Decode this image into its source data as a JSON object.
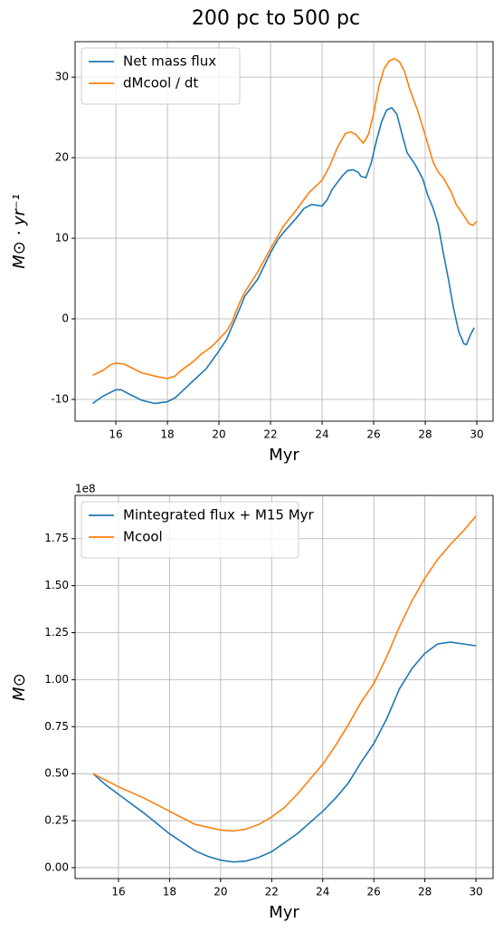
{
  "title": "200 pc to 500 pc",
  "chart_data": [
    {
      "type": "line",
      "xlabel": "Myr",
      "ylabel": "M⊙ · yr⁻¹",
      "legend": "upper left",
      "grid": true,
      "xlim": [
        14.42,
        30.63
      ],
      "xticks": [
        16,
        18,
        20,
        22,
        24,
        26,
        28,
        30
      ],
      "ylim": [
        -12.7,
        34.4
      ],
      "yticks": [
        -10,
        0,
        10,
        20,
        30
      ],
      "series": [
        {
          "name": "Net mass flux",
          "color": "#1f77b4",
          "x": [
            15.1,
            15.5,
            16,
            16.2,
            16.5,
            17,
            17.5,
            18,
            18.3,
            18.5,
            19,
            19.5,
            20,
            20.3,
            20.5,
            20.8,
            21,
            21.5,
            22,
            22.3,
            22.5,
            23,
            23.3,
            23.6,
            24,
            24.2,
            24.4,
            24.8,
            25,
            25.2,
            25.4,
            25.5,
            25.7,
            25.9,
            26.1,
            26.3,
            26.5,
            26.7,
            26.9,
            27.1,
            27.3,
            27.6,
            27.9,
            28.1,
            28.3,
            28.5,
            28.7,
            28.9,
            29.1,
            29.3,
            29.5,
            29.6,
            29.75,
            29.9
          ],
          "values": [
            -10.5,
            -9.6,
            -8.8,
            -8.8,
            -9.3,
            -10.1,
            -10.5,
            -10.3,
            -9.8,
            -9.2,
            -7.7,
            -6.2,
            -4.0,
            -2.5,
            -1.0,
            1.2,
            2.8,
            4.9,
            8.2,
            9.9,
            10.7,
            12.5,
            13.7,
            14.2,
            14.0,
            14.8,
            16.1,
            17.8,
            18.4,
            18.5,
            18.2,
            17.7,
            17.5,
            19.3,
            22,
            24.4,
            25.9,
            26.2,
            25.4,
            22.9,
            20.6,
            19.2,
            17.4,
            15.3,
            13.8,
            11.7,
            8.2,
            4.9,
            1.3,
            -1.6,
            -3.1,
            -3.2,
            -2.0,
            -1.1
          ]
        },
        {
          "name": "dMcool / dt",
          "color": "#ff7f0e",
          "x": [
            15.1,
            15.5,
            15.8,
            16,
            16.3,
            16.5,
            17,
            17.5,
            18,
            18.3,
            18.5,
            19,
            19.3,
            19.7,
            20,
            20.3,
            20.5,
            20.8,
            21,
            21.5,
            22,
            22.5,
            23,
            23.5,
            24,
            24.3,
            24.6,
            24.9,
            25.1,
            25.3,
            25.6,
            25.8,
            26,
            26.2,
            26.4,
            26.6,
            26.8,
            27,
            27.2,
            27.4,
            27.7,
            28,
            28.3,
            28.5,
            28.7,
            29,
            29.2,
            29.5,
            29.7,
            29.85,
            30
          ],
          "values": [
            -7.0,
            -6.4,
            -5.7,
            -5.5,
            -5.6,
            -5.9,
            -6.7,
            -7.1,
            -7.4,
            -7.1,
            -6.5,
            -5.3,
            -4.4,
            -3.5,
            -2.5,
            -1.5,
            -0.4,
            2.0,
            3.3,
            5.8,
            8.7,
            11.5,
            13.5,
            15.7,
            17.2,
            19.0,
            21.3,
            23.0,
            23.2,
            22.9,
            21.8,
            22.9,
            25.5,
            28.8,
            31.0,
            32.0,
            32.3,
            31.9,
            30.7,
            28.5,
            25.9,
            22.8,
            19.5,
            18.2,
            17.5,
            15.8,
            14.2,
            12.8,
            11.8,
            11.6,
            12.1
          ]
        }
      ]
    },
    {
      "type": "line",
      "xlabel": "Myr",
      "ylabel": "M⊙",
      "offset_text": "1e8",
      "legend": "upper left",
      "grid": true,
      "xlim": [
        14.3,
        30.67
      ],
      "xticks": [
        16,
        18,
        20,
        22,
        24,
        26,
        28,
        30
      ],
      "ylim": [
        -0.058,
        1.98
      ],
      "yticks": [
        {
          "value": 0,
          "label": "0.00"
        },
        {
          "value": 0.25,
          "label": "0.25"
        },
        {
          "value": 0.5,
          "label": "0.50"
        },
        {
          "value": 0.75,
          "label": "0.75"
        },
        {
          "value": 1,
          "label": "1.00"
        },
        {
          "value": 1.25,
          "label": "1.25"
        },
        {
          "value": 1.5,
          "label": "1.50"
        },
        {
          "value": 1.75,
          "label": "1.75"
        }
      ],
      "series": [
        {
          "name": "Mintegrated flux + M15 Myr",
          "color": "#1f77b4",
          "x": [
            15,
            15.5,
            16,
            17,
            18,
            19,
            19.5,
            20,
            20.5,
            21,
            21.5,
            22,
            23,
            24,
            24.5,
            25,
            25.5,
            26,
            26.5,
            27,
            27.5,
            28,
            28.5,
            29,
            29.5,
            30
          ],
          "values": [
            0.5,
            0.44,
            0.39,
            0.29,
            0.18,
            0.09,
            0.06,
            0.04,
            0.03,
            0.035,
            0.055,
            0.085,
            0.18,
            0.3,
            0.37,
            0.45,
            0.56,
            0.66,
            0.79,
            0.95,
            1.06,
            1.14,
            1.19,
            1.2,
            1.19,
            1.18
          ]
        },
        {
          "name": "Mcool",
          "color": "#ff7f0e",
          "x": [
            15,
            15.5,
            16,
            17,
            18,
            19,
            20,
            20.5,
            21,
            21.5,
            22,
            22.5,
            23,
            23.5,
            24,
            24.5,
            25,
            25.5,
            26,
            26.5,
            27,
            27.5,
            28,
            28.5,
            29,
            29.5,
            30
          ],
          "values": [
            0.5,
            0.465,
            0.43,
            0.37,
            0.3,
            0.23,
            0.2,
            0.195,
            0.205,
            0.23,
            0.27,
            0.32,
            0.39,
            0.47,
            0.55,
            0.65,
            0.76,
            0.88,
            0.98,
            1.12,
            1.28,
            1.42,
            1.54,
            1.64,
            1.72,
            1.79,
            1.87
          ]
        }
      ]
    }
  ]
}
